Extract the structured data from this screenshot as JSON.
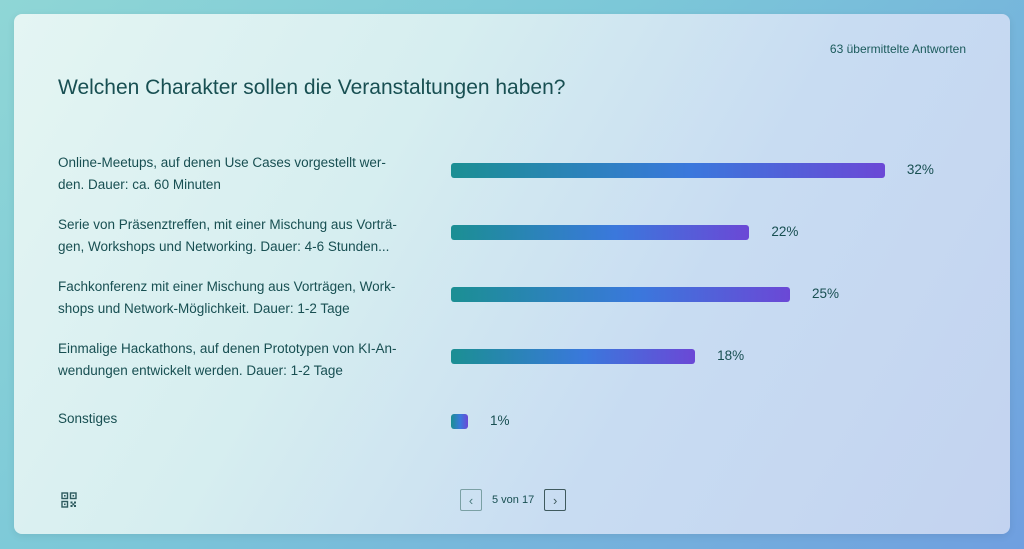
{
  "responses": "63 übermittelte Antworten",
  "question": "Welchen Charakter sollen die Veranstaltungen haben?",
  "options": [
    {
      "lines": [
        "Online-Meetups, auf denen Use Cases vorgestellt wer-",
        "den. Dauer: ca. 60 Minuten"
      ],
      "percent": 32,
      "label": "32%"
    },
    {
      "lines": [
        "Serie von Präsenztreffen, mit einer Mischung aus Vorträ-",
        "gen, Workshops und Networking. Dauer: 4-6 Stunden..."
      ],
      "percent": 22,
      "label": "22%"
    },
    {
      "lines": [
        "Fachkonferenz mit einer Mischung aus Vorträgen, Work-",
        "shops und Network-Möglichkeit. Dauer: 1-2 Tage"
      ],
      "percent": 25,
      "label": "25%"
    },
    {
      "lines": [
        "Einmalige Hackathons, auf denen Prototypen von KI-An-",
        "wendungen entwickelt werden. Dauer: 1-2 Tage"
      ],
      "percent": 18,
      "label": "18%"
    },
    {
      "lines": [
        "Sonstiges"
      ],
      "percent": 1,
      "label": "1%"
    }
  ],
  "pager": {
    "text": "5 von 17",
    "prev_icon": "‹",
    "next_icon": "›"
  },
  "colors": {
    "bar_start": "#1b8f93",
    "bar_mid": "#3a78dc",
    "bar_end": "#6b48d6",
    "text": "#184f52"
  }
}
